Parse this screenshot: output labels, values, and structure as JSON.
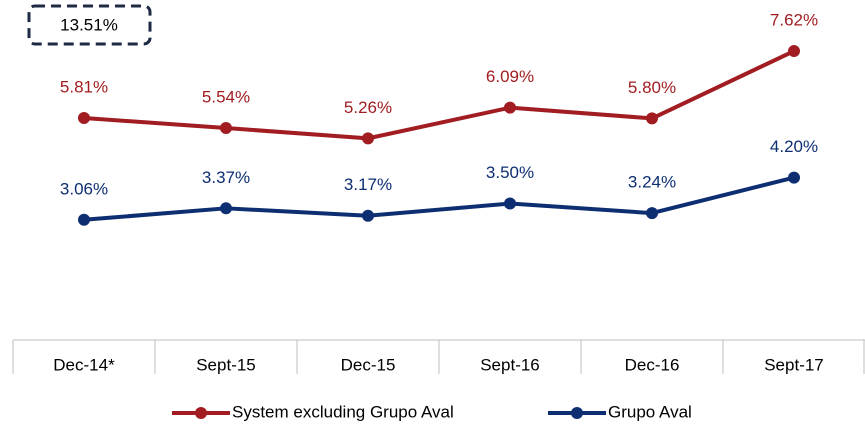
{
  "chart_data": {
    "type": "line",
    "annotation": "13.51%",
    "categories": [
      "Dec-14*",
      "Sept-15",
      "Dec-15",
      "Sept-16",
      "Dec-16",
      "Sept-17"
    ],
    "series": [
      {
        "name": "System excluding Grupo Aval",
        "color": "#a11d21",
        "values": [
          5.81,
          5.54,
          5.26,
          6.09,
          5.8,
          7.62
        ],
        "value_labels": [
          "5.81%",
          "5.54%",
          "5.26%",
          "6.09%",
          "5.80%",
          "7.62%"
        ]
      },
      {
        "name": "Grupo Aval",
        "color": "#0d2f72",
        "values": [
          3.06,
          3.37,
          3.17,
          3.5,
          3.24,
          4.2
        ],
        "value_labels": [
          "3.06%",
          "3.37%",
          "3.17%",
          "3.50%",
          "3.24%",
          "4.20%"
        ]
      }
    ],
    "ylim": [
      0,
      9
    ]
  }
}
